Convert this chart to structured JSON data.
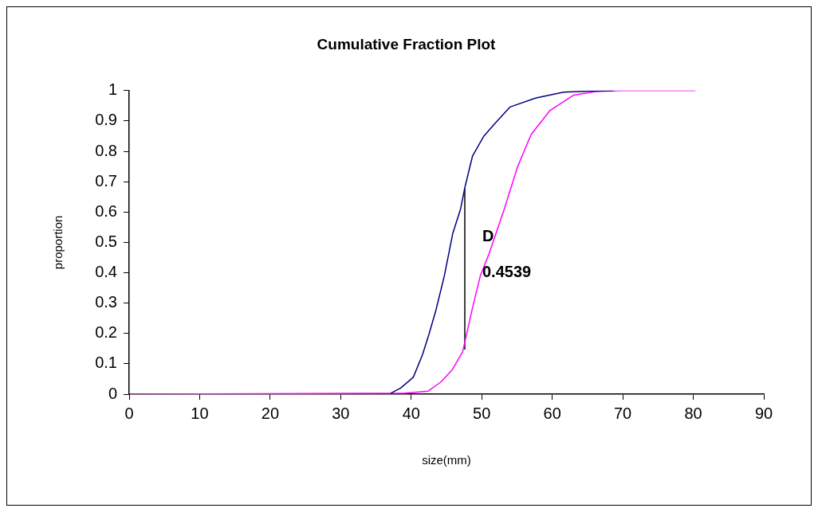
{
  "chart_data": {
    "type": "line",
    "title": "Cumulative Fraction Plot",
    "xlabel": "size(mm)",
    "ylabel": "proportion",
    "xlim": [
      0,
      90
    ],
    "xticks": [
      0,
      10,
      20,
      30,
      40,
      50,
      60,
      70,
      80,
      90
    ],
    "ylim": [
      0,
      1
    ],
    "yticks": [
      0,
      0.1,
      0.2,
      0.3,
      0.4,
      0.5,
      0.6,
      0.7,
      0.8,
      0.9,
      1
    ],
    "grid": false,
    "legend": false,
    "marker": "none",
    "line_style": "solid",
    "series": [
      {
        "color": "#000080",
        "x": [
          37.1,
          38.5,
          40.3,
          41.6,
          42.5,
          43.5,
          44.7,
          45.9,
          47.0,
          47.6,
          48.7,
          50.3,
          51.8,
          54.0,
          57.7,
          61.6,
          65,
          68.7
        ],
        "values": [
          0.003,
          0.02,
          0.056,
          0.13,
          0.196,
          0.276,
          0.39,
          0.53,
          0.61,
          0.68,
          0.785,
          0.85,
          0.89,
          0.946,
          0.976,
          0.995,
          0.998,
          1
        ]
      },
      {
        "color": "#ff00ff",
        "x": [
          0,
          39.0,
          42.4,
          44.2,
          45.8,
          47.3,
          48.7,
          49.8,
          51.0,
          53.2,
          55.1,
          57.0,
          59.7,
          63.0,
          66.1,
          70,
          80.3
        ],
        "values": [
          0,
          0.003,
          0.01,
          0.04,
          0.08,
          0.14,
          0.285,
          0.39,
          0.46,
          0.61,
          0.75,
          0.855,
          0.935,
          0.985,
          0.997,
          1,
          1
        ]
      },
      {
        "color": "#000000",
        "x": [
          47.6,
          47.6
        ],
        "values": [
          0.147,
          0.678
        ]
      }
    ],
    "annotations": [
      "D",
      "0.4539"
    ]
  }
}
